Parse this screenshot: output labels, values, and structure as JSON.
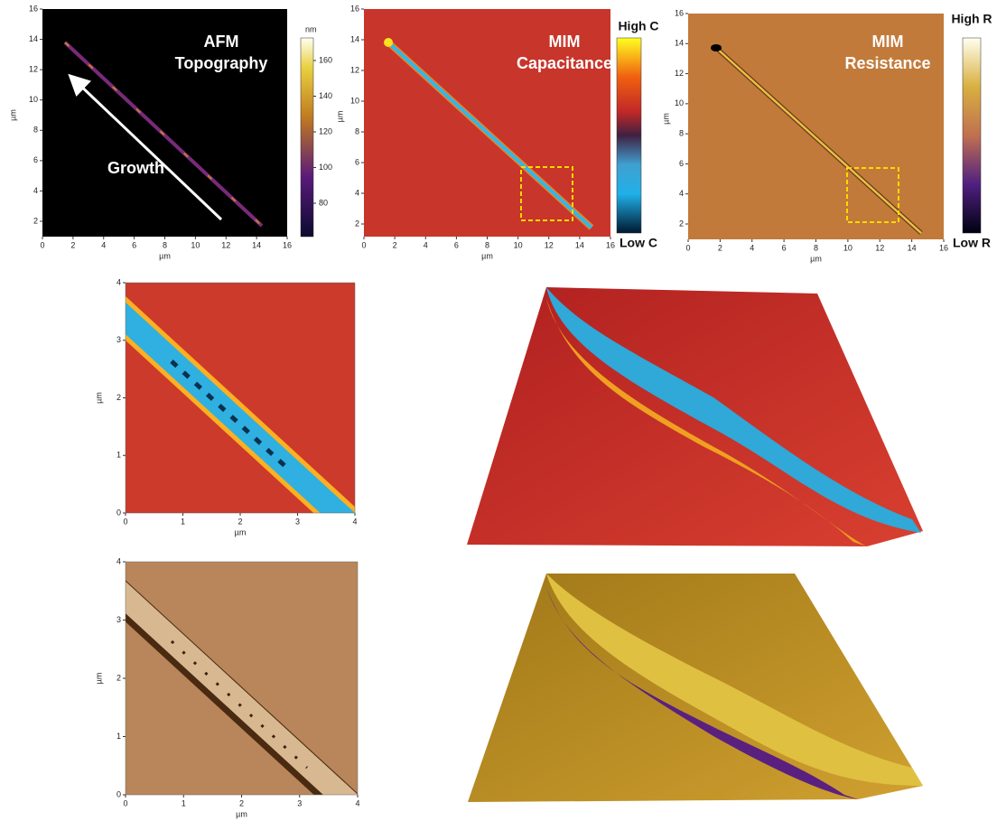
{
  "panels": [
    {
      "title": [
        "AFM",
        "Topography"
      ],
      "annotation": "Growth",
      "colorbar": {
        "unit": "nm",
        "ticks": [
          160,
          140,
          120,
          100,
          80
        ]
      },
      "xticks": [
        0,
        2,
        4,
        6,
        8,
        10,
        12,
        14,
        16
      ],
      "yticks": [
        2,
        4,
        6,
        8,
        10,
        12,
        14,
        16
      ],
      "x_label": "µm",
      "y_label": "µm"
    },
    {
      "title": [
        "MIM",
        "Capacitance"
      ],
      "colorbar": {
        "high": "High C",
        "low": "Low C"
      },
      "xticks": [
        0,
        2,
        4,
        6,
        8,
        10,
        12,
        14,
        16
      ],
      "yticks": [
        2,
        4,
        6,
        8,
        10,
        12,
        14,
        16
      ],
      "x_label": "µm",
      "y_label": "µm"
    },
    {
      "title": [
        "MIM",
        "Resistance"
      ],
      "colorbar": {
        "high": "High R",
        "low": "Low R"
      },
      "xticks": [
        0,
        2,
        4,
        6,
        8,
        10,
        12,
        14,
        16
      ],
      "yticks": [
        2,
        4,
        6,
        8,
        10,
        12,
        14,
        16
      ],
      "x_label": "µm",
      "y_label": "µm"
    },
    {
      "xticks": [
        0,
        1,
        2,
        3,
        4
      ],
      "yticks": [
        0,
        1,
        2,
        3,
        4
      ],
      "x_label": "µm",
      "y_label": "µm"
    },
    {
      "xticks": [
        0,
        1,
        2,
        3,
        4
      ],
      "yticks": [
        0,
        1,
        2,
        3,
        4
      ],
      "x_label": "µm",
      "y_label": "µm"
    }
  ]
}
